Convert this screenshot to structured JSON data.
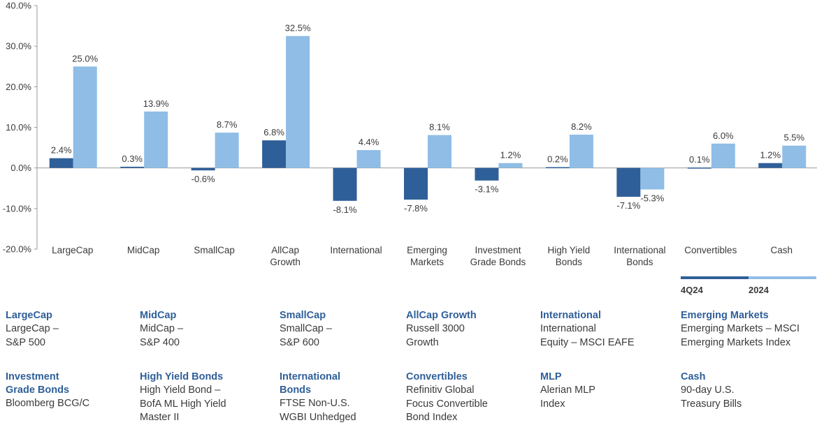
{
  "chart_data": {
    "type": "bar",
    "categories": [
      [
        "LargeCap"
      ],
      [
        "MidCap"
      ],
      [
        "SmallCap"
      ],
      [
        "AllCap",
        "Growth"
      ],
      [
        "International"
      ],
      [
        "Emerging",
        "Markets"
      ],
      [
        "Investment",
        "Grade Bonds"
      ],
      [
        "High Yield",
        "Bonds"
      ],
      [
        "International",
        "Bonds"
      ],
      [
        "Convertibles"
      ],
      [
        "Cash"
      ]
    ],
    "series": [
      {
        "name": "4Q24",
        "color": "#2f5f99",
        "values": [
          2.4,
          0.3,
          -0.6,
          6.8,
          -8.1,
          -7.8,
          -3.1,
          0.2,
          -7.1,
          0.1,
          1.2
        ],
        "labels": [
          "2.4%",
          "0.3%",
          "-0.6%",
          "6.8%",
          "-8.1%",
          "-7.8%",
          "-3.1%",
          "0.2%",
          "-7.1%",
          "0.1%",
          "1.2%"
        ]
      },
      {
        "name": "2024",
        "color": "#8fbde6",
        "values": [
          25.0,
          13.9,
          8.7,
          32.5,
          4.4,
          8.1,
          1.2,
          8.2,
          -5.3,
          6.0,
          5.5
        ],
        "labels": [
          "25.0%",
          "13.9%",
          "8.7%",
          "32.5%",
          "4.4%",
          "8.1%",
          "1.2%",
          "8.2%",
          "-5.3%",
          "6.0%",
          "5.5%"
        ]
      }
    ],
    "ylim": [
      -20,
      40
    ],
    "yticks": [
      40,
      30,
      20,
      10,
      0,
      -10,
      -20
    ],
    "ytick_labels": [
      "40.0%",
      "30.0%",
      "20.0%",
      "10.0%",
      "0.0%",
      "-10.0%",
      "-20.0%"
    ],
    "legend_position": "bottom-right",
    "grid": false
  },
  "legend": {
    "items": [
      {
        "label": "4Q24",
        "color": "#2f5f99"
      },
      {
        "label": "2024",
        "color": "#8fbde6"
      }
    ]
  },
  "definitions": [
    {
      "title": [
        "LargeCap"
      ],
      "desc": [
        "LargeCap –",
        "S&P 500"
      ]
    },
    {
      "title": [
        "MidCap"
      ],
      "desc": [
        "MidCap –",
        "S&P 400"
      ]
    },
    {
      "title": [
        "SmallCap"
      ],
      "desc": [
        "SmallCap –",
        "S&P 600"
      ]
    },
    {
      "title": [
        "AllCap Growth"
      ],
      "desc": [
        "Russell 3000",
        "Growth"
      ]
    },
    {
      "title": [
        "International"
      ],
      "desc": [
        "International",
        "Equity – MSCI EAFE"
      ]
    },
    {
      "title": [
        "Emerging Markets"
      ],
      "desc": [
        "Emerging Markets – MSCI",
        "Emerging Markets Index"
      ]
    },
    {
      "title": [
        "Investment",
        "Grade Bonds"
      ],
      "desc": [
        "Bloomberg BCG/C"
      ]
    },
    {
      "title": [
        "High Yield Bonds"
      ],
      "desc": [
        "High Yield Bond –",
        "BofA ML High Yield",
        "Master II"
      ]
    },
    {
      "title": [
        "International",
        "Bonds"
      ],
      "desc": [
        "FTSE Non-U.S.",
        "WGBI Unhedged"
      ]
    },
    {
      "title": [
        "Convertibles"
      ],
      "desc": [
        "Refinitiv Global",
        "Focus Convertible",
        "Bond Index"
      ]
    },
    {
      "title": [
        "MLP"
      ],
      "desc": [
        "Alerian MLP",
        "Index"
      ]
    },
    {
      "title": [
        "Cash"
      ],
      "desc": [
        "90-day U.S.",
        "Treasury Bills"
      ]
    }
  ]
}
